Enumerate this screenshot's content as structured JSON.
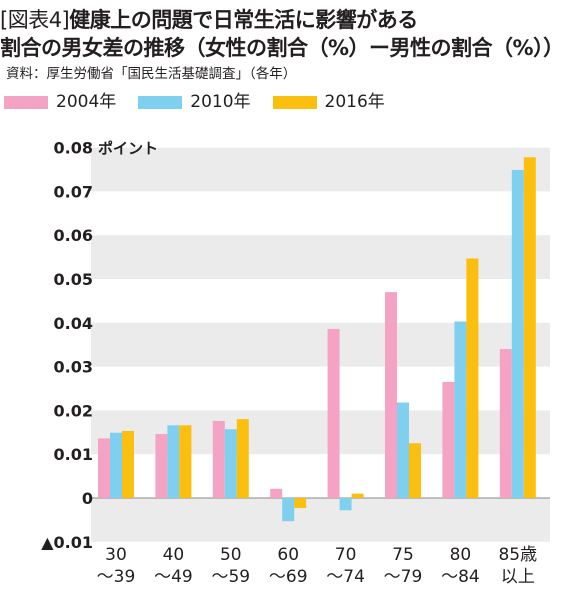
{
  "header": {
    "tag": "[図表4]",
    "title_line1": "健康上の問題で日常生活に影響がある",
    "title_line2": "割合の男女差の推移（女性の割合（%）ー男性の割合（%））",
    "source": "資料：厚生労働省「国民生活基礎調査」（各年）"
  },
  "colors": {
    "2004年": "#f4a3c4",
    "2010年": "#7fd0ef",
    "2016年": "#fbbf0f",
    "band": "#ebebeb",
    "text": "#231f20"
  },
  "chart_data": {
    "type": "bar",
    "title": "健康上の問題で日常生活に影響がある割合の男女差の推移（女性の割合（%）ー男性の割合（%））",
    "ylabel": "ポイント",
    "ylim": [
      -0.012,
      0.08
    ],
    "yticks": [
      {
        "value": 0.08,
        "label": "0.08"
      },
      {
        "value": 0.07,
        "label": "0.07"
      },
      {
        "value": 0.06,
        "label": "0.06"
      },
      {
        "value": 0.05,
        "label": "0.05"
      },
      {
        "value": 0.04,
        "label": "0.04"
      },
      {
        "value": 0.03,
        "label": "0.03"
      },
      {
        "value": 0.02,
        "label": "0.02"
      },
      {
        "value": 0.01,
        "label": "0.01"
      },
      {
        "value": 0,
        "label": "0"
      },
      {
        "value": -0.01,
        "label": "▲0.01"
      }
    ],
    "categories": [
      "30〜39",
      "40〜49",
      "50〜59",
      "60〜69",
      "70〜74",
      "75〜79",
      "80〜84",
      "85歳以上"
    ],
    "category_labels": [
      [
        "30",
        "〜39"
      ],
      [
        "40",
        "〜49"
      ],
      [
        "50",
        "〜59"
      ],
      [
        "60",
        "〜69"
      ],
      [
        "70",
        "〜74"
      ],
      [
        "75",
        "〜79"
      ],
      [
        "80",
        "〜84"
      ],
      [
        "85歳",
        "以上"
      ]
    ],
    "series": [
      {
        "name": "2004年",
        "values": [
          0.0136,
          0.0146,
          0.0176,
          0.0021,
          0.0386,
          0.047,
          0.0265,
          0.034
        ]
      },
      {
        "name": "2010年",
        "values": [
          0.0149,
          0.0166,
          0.0157,
          -0.0053,
          -0.0028,
          0.0218,
          0.0403,
          0.0749
        ]
      },
      {
        "name": "2016年",
        "values": [
          0.0153,
          0.0166,
          0.018,
          -0.0023,
          0.001,
          0.0125,
          0.0547,
          0.0778
        ]
      }
    ],
    "grid": "alternating horizontal bands",
    "legend": "top"
  }
}
